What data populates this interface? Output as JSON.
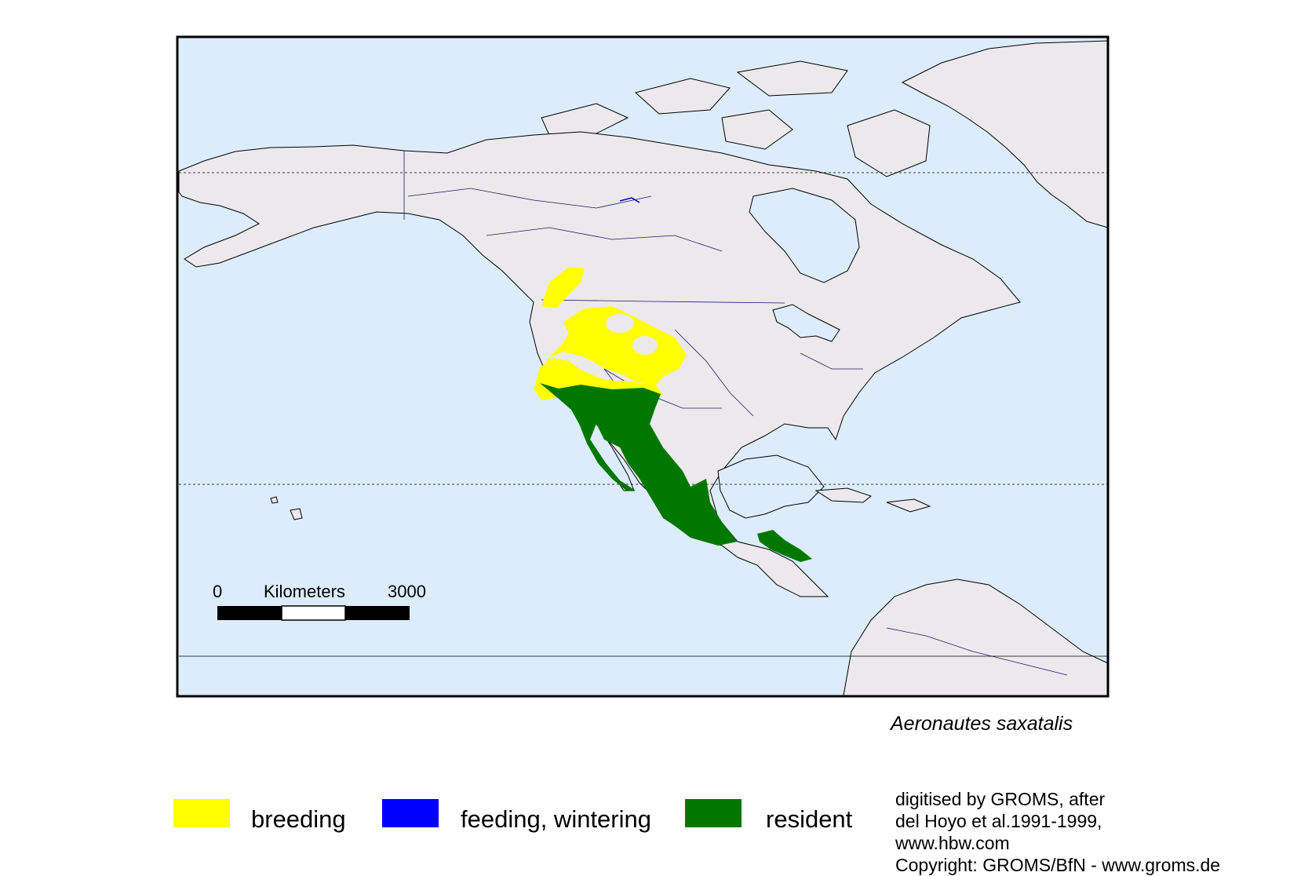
{
  "map": {
    "species": "Aeronautes saxatalis",
    "scale_bar": {
      "start": "0",
      "unit": "Kilometers",
      "end": "3000"
    },
    "colors": {
      "ocean": "#dcecfb",
      "land": "#ece9ec",
      "frame": "#000000",
      "breeding": "#ffff00",
      "feeding_wintering": "#0000ff",
      "resident": "#007800"
    }
  },
  "legend": {
    "items": [
      {
        "label": "breeding",
        "color": "#ffff00"
      },
      {
        "label": "feeding, wintering",
        "color": "#0000ff"
      },
      {
        "label": "resident",
        "color": "#007800"
      }
    ]
  },
  "credits": {
    "lines": [
      "digitised by GROMS, after",
      "del Hoyo et al.1991-1999,",
      "www.hbw.com",
      "Copyright: GROMS/BfN - www.groms.de"
    ]
  }
}
